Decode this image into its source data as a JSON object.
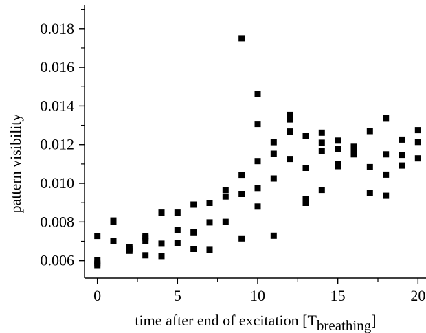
{
  "chart_data": {
    "type": "scatter",
    "xlabel": "time after end of excitation [T",
    "xlabel_subscript": "breathing",
    "xlabel_suffix": "]",
    "ylabel": "pattern visibility",
    "xlim": [
      -0.8,
      20.5
    ],
    "ylim": [
      0.0051,
      0.0192
    ],
    "x_ticks": [
      0,
      5,
      10,
      15,
      20
    ],
    "x_tick_labels": [
      "0",
      "5",
      "10",
      "15",
      "20"
    ],
    "y_ticks": [
      0.006,
      0.008,
      0.01,
      0.012,
      0.014,
      0.016,
      0.018
    ],
    "y_tick_labels": [
      "0.006",
      "0.008",
      "0.010",
      "0.012",
      "0.014",
      "0.016",
      "0.018"
    ],
    "grid": false,
    "legend": false,
    "marker": "square",
    "marker_color": "#000000",
    "points": [
      {
        "x": 0,
        "y": 0.00728
      },
      {
        "x": 0,
        "y": 0.00601
      },
      {
        "x": 0,
        "y": 0.00585
      },
      {
        "x": 0,
        "y": 0.00574
      },
      {
        "x": 1,
        "y": 0.00808
      },
      {
        "x": 1,
        "y": 0.008
      },
      {
        "x": 1,
        "y": 0.007
      },
      {
        "x": 2,
        "y": 0.00669
      },
      {
        "x": 2,
        "y": 0.0066
      },
      {
        "x": 2,
        "y": 0.00651
      },
      {
        "x": 3,
        "y": 0.00728
      },
      {
        "x": 3,
        "y": 0.00719
      },
      {
        "x": 3,
        "y": 0.00701
      },
      {
        "x": 3,
        "y": 0.00628
      },
      {
        "x": 4,
        "y": 0.00849
      },
      {
        "x": 4,
        "y": 0.00688
      },
      {
        "x": 4,
        "y": 0.00624
      },
      {
        "x": 5,
        "y": 0.00849
      },
      {
        "x": 5,
        "y": 0.00757
      },
      {
        "x": 5,
        "y": 0.00693
      },
      {
        "x": 6,
        "y": 0.0089
      },
      {
        "x": 6,
        "y": 0.00747
      },
      {
        "x": 6,
        "y": 0.00661
      },
      {
        "x": 7,
        "y": 0.00899
      },
      {
        "x": 7,
        "y": 0.00798
      },
      {
        "x": 7,
        "y": 0.00656
      },
      {
        "x": 8,
        "y": 0.00966
      },
      {
        "x": 8,
        "y": 0.00932
      },
      {
        "x": 8,
        "y": 0.00801
      },
      {
        "x": 9,
        "y": 0.0175
      },
      {
        "x": 9,
        "y": 0.01044
      },
      {
        "x": 9,
        "y": 0.00945
      },
      {
        "x": 9,
        "y": 0.00715
      },
      {
        "x": 10,
        "y": 0.01463
      },
      {
        "x": 10,
        "y": 0.01307
      },
      {
        "x": 10,
        "y": 0.01115
      },
      {
        "x": 10,
        "y": 0.00976
      },
      {
        "x": 10,
        "y": 0.0088
      },
      {
        "x": 11,
        "y": 0.01213
      },
      {
        "x": 11,
        "y": 0.01153
      },
      {
        "x": 11,
        "y": 0.01025
      },
      {
        "x": 11,
        "y": 0.00729
      },
      {
        "x": 12,
        "y": 0.01354
      },
      {
        "x": 12,
        "y": 0.0133
      },
      {
        "x": 12,
        "y": 0.01268
      },
      {
        "x": 12,
        "y": 0.01126
      },
      {
        "x": 13,
        "y": 0.01245
      },
      {
        "x": 13,
        "y": 0.0108
      },
      {
        "x": 13,
        "y": 0.00919
      },
      {
        "x": 13,
        "y": 0.00899
      },
      {
        "x": 14,
        "y": 0.01262
      },
      {
        "x": 14,
        "y": 0.0121
      },
      {
        "x": 14,
        "y": 0.01168
      },
      {
        "x": 14,
        "y": 0.00966
      },
      {
        "x": 15,
        "y": 0.01221
      },
      {
        "x": 15,
        "y": 0.01178
      },
      {
        "x": 15,
        "y": 0.01098
      },
      {
        "x": 15,
        "y": 0.01089
      },
      {
        "x": 16,
        "y": 0.01189
      },
      {
        "x": 16,
        "y": 0.01175
      },
      {
        "x": 16,
        "y": 0.0116
      },
      {
        "x": 16,
        "y": 0.0115
      },
      {
        "x": 17,
        "y": 0.0127
      },
      {
        "x": 17,
        "y": 0.01084
      },
      {
        "x": 17,
        "y": 0.00951
      },
      {
        "x": 18,
        "y": 0.01338
      },
      {
        "x": 18,
        "y": 0.0115
      },
      {
        "x": 18,
        "y": 0.01045
      },
      {
        "x": 18,
        "y": 0.00936
      },
      {
        "x": 19,
        "y": 0.01226
      },
      {
        "x": 19,
        "y": 0.01147
      },
      {
        "x": 19,
        "y": 0.01092
      },
      {
        "x": 20,
        "y": 0.01275
      },
      {
        "x": 20,
        "y": 0.01214
      },
      {
        "x": 20,
        "y": 0.01129
      }
    ]
  }
}
